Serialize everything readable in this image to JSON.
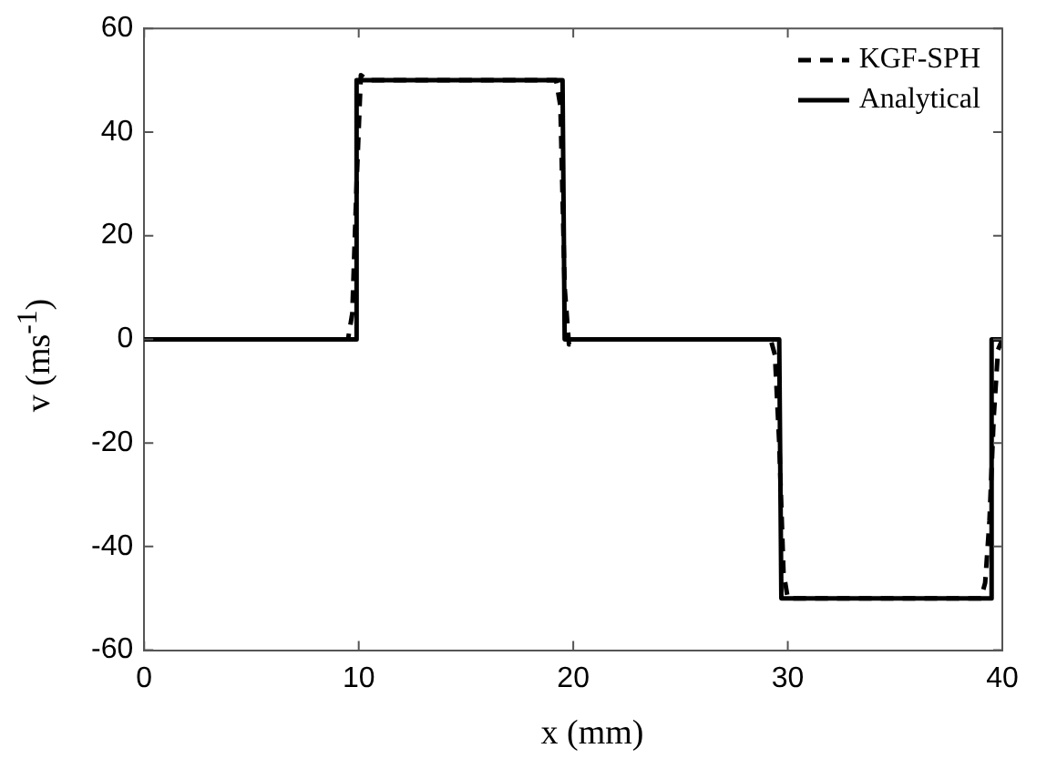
{
  "chart_data": {
    "type": "line",
    "xlabel": "x (mm)",
    "ylabel": "v (ms$^{-1}$)",
    "xlim": [
      0,
      40
    ],
    "xticks": [
      0,
      10,
      20,
      30,
      40
    ],
    "ylim": [
      -60,
      60
    ],
    "yticks": [
      -60,
      -40,
      -20,
      0,
      20,
      40,
      60
    ],
    "grid": false,
    "legend": "top right",
    "marker": "none",
    "series": [
      {
        "name": "KGF-SPH",
        "color": "#000000",
        "line_style": "dashed",
        "x": [
          0,
          9.5,
          9.7,
          9.9,
          10.1,
          10.4,
          19.2,
          19.4,
          19.6,
          19.8,
          20.1,
          29.2,
          29.4,
          29.6,
          29.8,
          30.0,
          39.0,
          39.2,
          39.4,
          39.6,
          39.8,
          40
        ],
        "values": [
          0,
          0,
          5,
          30,
          51,
          50,
          50,
          45,
          10,
          -1,
          0,
          0,
          -3,
          -20,
          -45,
          -50,
          -50,
          -47,
          -35,
          -15,
          -2,
          0
        ]
      },
      {
        "name": "Analytical",
        "color": "#000000",
        "line_style": "solid",
        "x": [
          0,
          9.9,
          9.9,
          19.5,
          19.6,
          29.6,
          29.7,
          39.5,
          39.5,
          40
        ],
        "values": [
          0,
          0,
          50,
          50,
          0,
          0,
          -50,
          -50,
          0,
          0
        ]
      }
    ]
  }
}
